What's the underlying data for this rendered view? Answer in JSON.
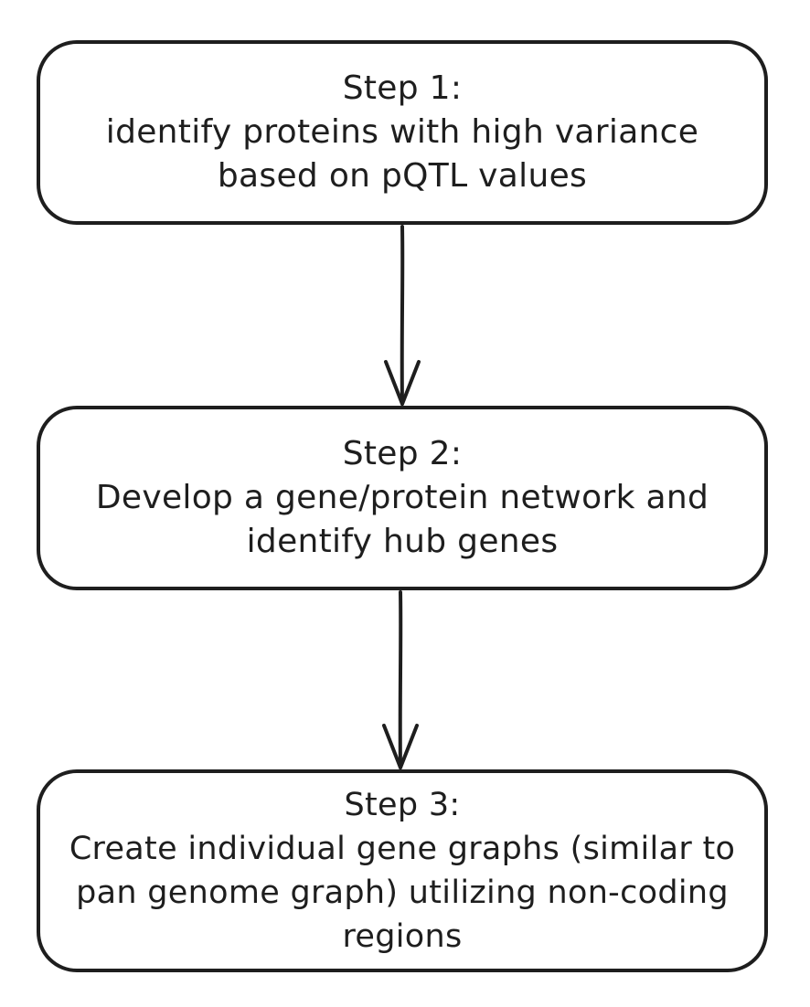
{
  "diagram": {
    "steps": [
      {
        "title": "Step 1:",
        "line1": "identify proteins with high variance",
        "line2": "based on pQTL values"
      },
      {
        "title": "Step 2:",
        "line1": "Develop a gene/protein network and",
        "line2": "identify hub genes"
      },
      {
        "title": "Step 3:",
        "line1": "Create individual gene graphs (similar to",
        "line2": "pan genome graph) utilizing non-coding",
        "line3": "regions"
      }
    ],
    "colors": {
      "stroke": "#1e1e1e",
      "background": "#ffffff"
    }
  }
}
